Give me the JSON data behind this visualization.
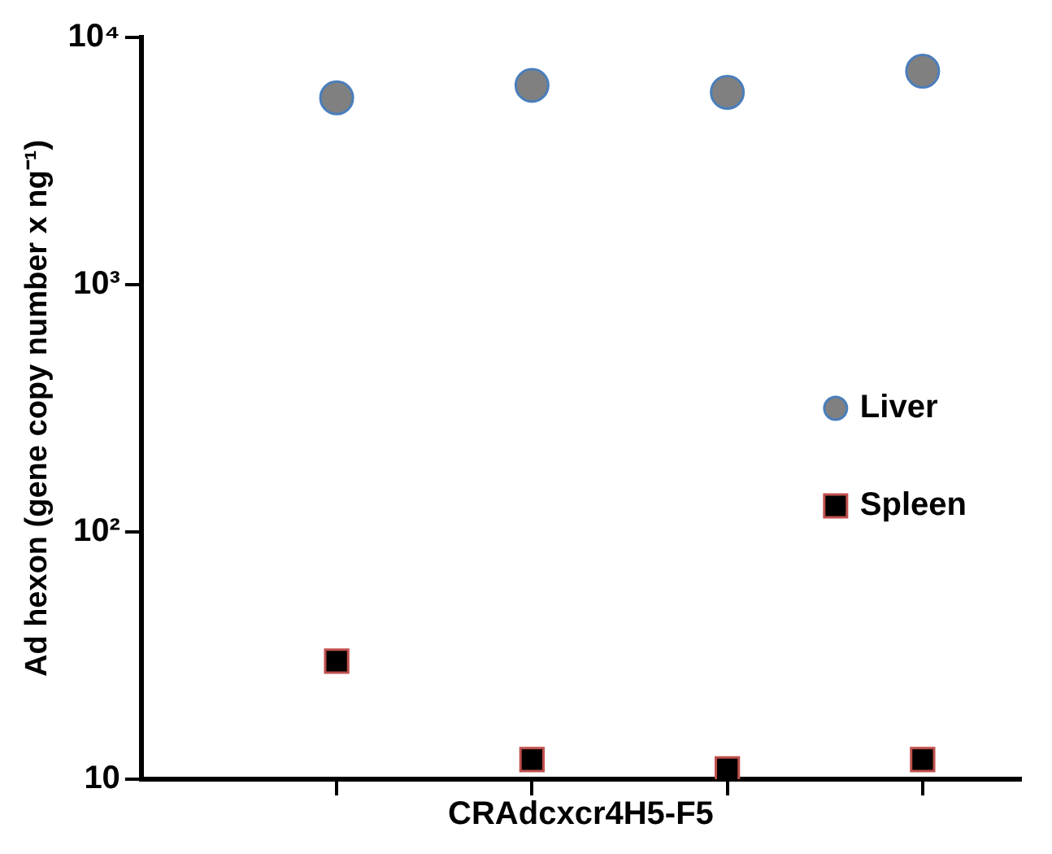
{
  "chart_data": {
    "type": "scatter",
    "xlabel": "CRAdcxcr4H5-F5",
    "ylabel": "Ad hexon (gene copy number x ng⁻¹)",
    "categories": [
      null,
      null,
      null,
      null
    ],
    "series": [
      {
        "name": "Liver",
        "color": "#808080",
        "marker": "circle",
        "values": [
          5700,
          6400,
          6000,
          7300
        ]
      },
      {
        "name": "Spleen",
        "color": "#000000",
        "marker": "square",
        "values": [
          30,
          12,
          11,
          12
        ]
      }
    ],
    "log": "y",
    "ylim": [
      10,
      10000
    ],
    "yticks": [
      {
        "value": 10,
        "label": "10"
      },
      {
        "value": 100,
        "label": "10²"
      },
      {
        "value": 1000,
        "label": "10³"
      },
      {
        "value": 10000,
        "label": "10⁴"
      }
    ],
    "grid": false,
    "legend": "right",
    "tick_labels": "y"
  }
}
